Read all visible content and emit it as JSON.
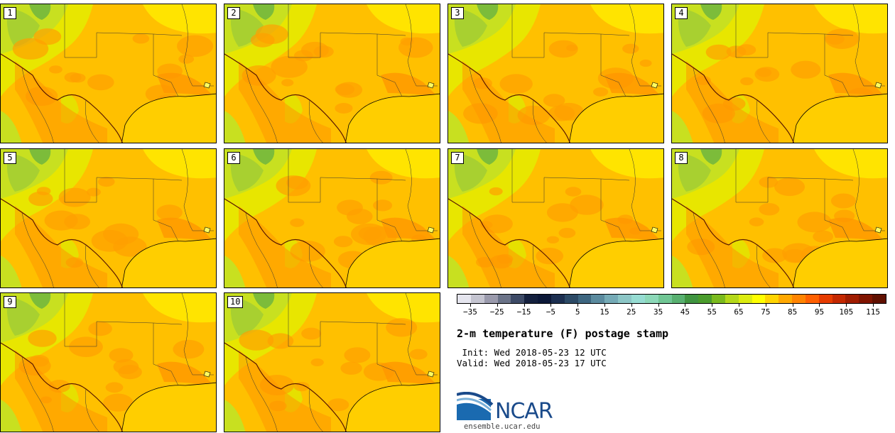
{
  "panels": [
    {
      "label": "1"
    },
    {
      "label": "2"
    },
    {
      "label": "3"
    },
    {
      "label": "4"
    },
    {
      "label": "5"
    },
    {
      "label": "6"
    },
    {
      "label": "7"
    },
    {
      "label": "8"
    },
    {
      "label": "9"
    },
    {
      "label": "10"
    }
  ],
  "colorbar": {
    "tick_labels": [
      "−35",
      "−25",
      "−15",
      "−5",
      "5",
      "15",
      "25",
      "35",
      "45",
      "55",
      "65",
      "75",
      "85",
      "95",
      "105",
      "115"
    ],
    "colors": [
      "#e5e5ee",
      "#c4c4d0",
      "#9a9aac",
      "#6b7388",
      "#3d4a66",
      "#14203e",
      "#0c1838",
      "#1c2f50",
      "#2c4a66",
      "#3d6680",
      "#5a8a9e",
      "#75aab6",
      "#8cc6c6",
      "#96dcd2",
      "#8cd8b8",
      "#70c694",
      "#58b070",
      "#3f9440",
      "#4a9c2c",
      "#7aba1e",
      "#b4d81a",
      "#dcec10",
      "#ffff00",
      "#ffd400",
      "#ffa800",
      "#ff8400",
      "#ff6000",
      "#e63c00",
      "#c42800",
      "#a01c00",
      "#801400",
      "#601000"
    ]
  },
  "title": "2-m temperature (F) postage stamp",
  "init": " Init: Wed 2018-05-23 12 UTC",
  "valid": "Valid: Wed 2018-05-23 17 UTC",
  "logo": {
    "text": "NCAR",
    "url": "ensemble.ucar.edu"
  }
}
